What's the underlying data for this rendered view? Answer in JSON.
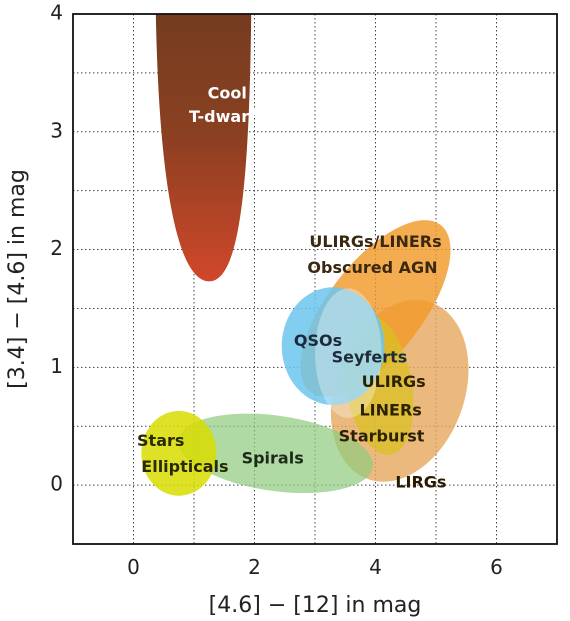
{
  "chart_data": {
    "type": "scatter",
    "title": "",
    "xlabel": "[4.6] − [12] in mag",
    "ylabel": "[3.4] − [4.6] in mag",
    "xlim": [
      -1,
      7
    ],
    "ylim": [
      -0.5,
      4
    ],
    "xticks": [
      0,
      2,
      4,
      6
    ],
    "yticks": [
      0,
      1,
      2,
      3,
      4
    ],
    "grid": true,
    "grid_x": [
      -1,
      0,
      1,
      2,
      3,
      4,
      5,
      6,
      7
    ],
    "grid_y": [
      0,
      0.5,
      1,
      1.5,
      2,
      2.5,
      3,
      3.5
    ],
    "regions": [
      {
        "name": "LIRGs",
        "color": "#e6a860",
        "opacity": 0.82,
        "shape": "ellipse",
        "cx": 4.4,
        "cy": 0.8,
        "rx": 1.55,
        "ry": 0.55,
        "angle": -70
      },
      {
        "name": "ULIRGs/LINERs Obscured AGN",
        "color": "#f29a2a",
        "opacity": 0.82,
        "shape": "ellipse",
        "cx": 4.0,
        "cy": 1.5,
        "rx": 1.75,
        "ry": 0.4,
        "angle": -52
      },
      {
        "name": "Spirals",
        "color": "#90cc80",
        "opacity": 0.72,
        "shape": "ellipse",
        "cx": 2.35,
        "cy": 0.27,
        "rx": 1.62,
        "ry": 0.32,
        "angle": 8
      },
      {
        "name": "Stars / Ellipticals",
        "color": "#d8dc00",
        "opacity": 0.85,
        "shape": "ellipse",
        "cx": 0.75,
        "cy": 0.27,
        "rx": 0.62,
        "ry": 0.36,
        "angle": 0
      },
      {
        "name": "ULIRGs LINERs Starburst",
        "color": "#d9c020",
        "opacity": 0.72,
        "shape": "ellipse",
        "cx": 4.05,
        "cy": 0.85,
        "rx": 0.55,
        "ry": 0.6,
        "angle": -10
      },
      {
        "name": "QSOs",
        "color": "#6cc6ee",
        "opacity": 0.85,
        "shape": "ellipse",
        "cx": 3.3,
        "cy": 1.18,
        "rx": 0.85,
        "ry": 0.5,
        "angle": 0
      },
      {
        "name": "Seyferts",
        "color": "#ffffff",
        "opacity": 0.32,
        "shape": "ellipse",
        "cx": 3.55,
        "cy": 1.12,
        "rx": 0.55,
        "ry": 0.55,
        "angle": 0
      },
      {
        "name": "Cool T-dwarfs",
        "color": "#6b3a20",
        "color2": "#d1472a",
        "opacity": 1,
        "shape": "parabola",
        "top": 4.0,
        "bottom": 1.73,
        "xmin": 0.36,
        "xmax": 1.95,
        "tip_x": 1.25
      }
    ],
    "labels": [
      {
        "text": "Cool",
        "x": 1.55,
        "y": 3.32,
        "color": "#ffffff"
      },
      {
        "text": "T-dwarfs",
        "x": 1.55,
        "y": 3.12,
        "color": "#ffffff"
      },
      {
        "text": "ULIRGs/LINERs",
        "x": 4.0,
        "y": 2.06,
        "color": "#3a2810"
      },
      {
        "text": "Obscured AGN",
        "x": 3.95,
        "y": 1.84,
        "color": "#3a2810"
      },
      {
        "text": "QSOs",
        "x": 3.05,
        "y": 1.22,
        "color": "#1d2a3a"
      },
      {
        "text": "Seyferts",
        "x": 3.9,
        "y": 1.08,
        "color": "#1d2a3a"
      },
      {
        "text": "ULIRGs",
        "x": 4.3,
        "y": 0.87,
        "color": "#2a2200"
      },
      {
        "text": "LINERs",
        "x": 4.25,
        "y": 0.63,
        "color": "#2a2200"
      },
      {
        "text": "Starburst",
        "x": 4.1,
        "y": 0.41,
        "color": "#2a2200"
      },
      {
        "text": "Stars",
        "x": 0.45,
        "y": 0.37,
        "color": "#2a2a00"
      },
      {
        "text": "Ellipticals",
        "x": 0.85,
        "y": 0.15,
        "color": "#2a2a00"
      },
      {
        "text": "Spirals",
        "x": 2.3,
        "y": 0.22,
        "color": "#1d2a1a"
      },
      {
        "text": "LIRGs",
        "x": 4.75,
        "y": 0.02,
        "color": "#2a1a00"
      }
    ]
  }
}
